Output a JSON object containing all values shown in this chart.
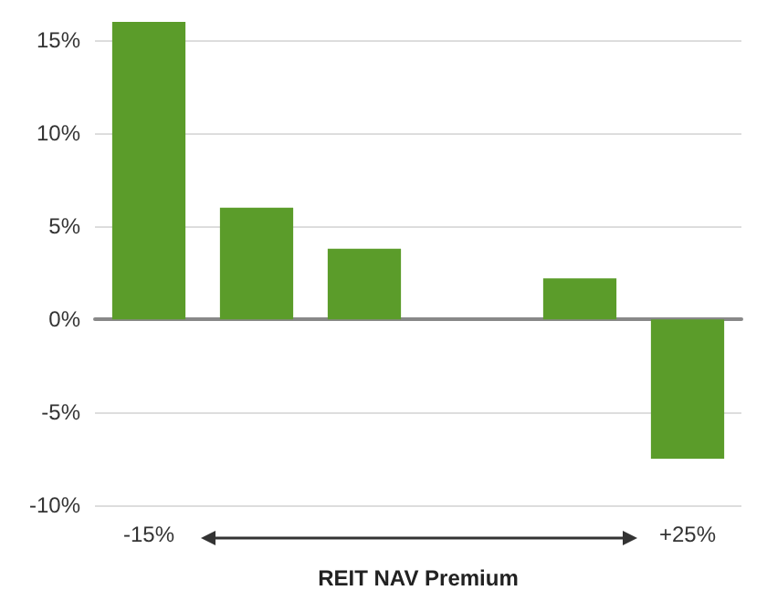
{
  "chart_data": {
    "type": "bar",
    "xlabel": "REIT NAV Premium",
    "categories": [
      "-15%",
      null,
      null,
      null,
      null,
      "+25%"
    ],
    "values": [
      16,
      6,
      3.8,
      null,
      2.2,
      -7.5
    ],
    "color": "#5b9c2a",
    "ylim": [
      -10,
      16
    ],
    "yticks": [
      {
        "value": -10,
        "label": "-10%"
      },
      {
        "value": -5,
        "label": "-5%"
      },
      {
        "value": 0,
        "label": "0%"
      },
      {
        "value": 5,
        "label": "5%"
      },
      {
        "value": 10,
        "label": "10%"
      },
      {
        "value": 15,
        "label": "15%"
      }
    ],
    "grid": "y"
  }
}
